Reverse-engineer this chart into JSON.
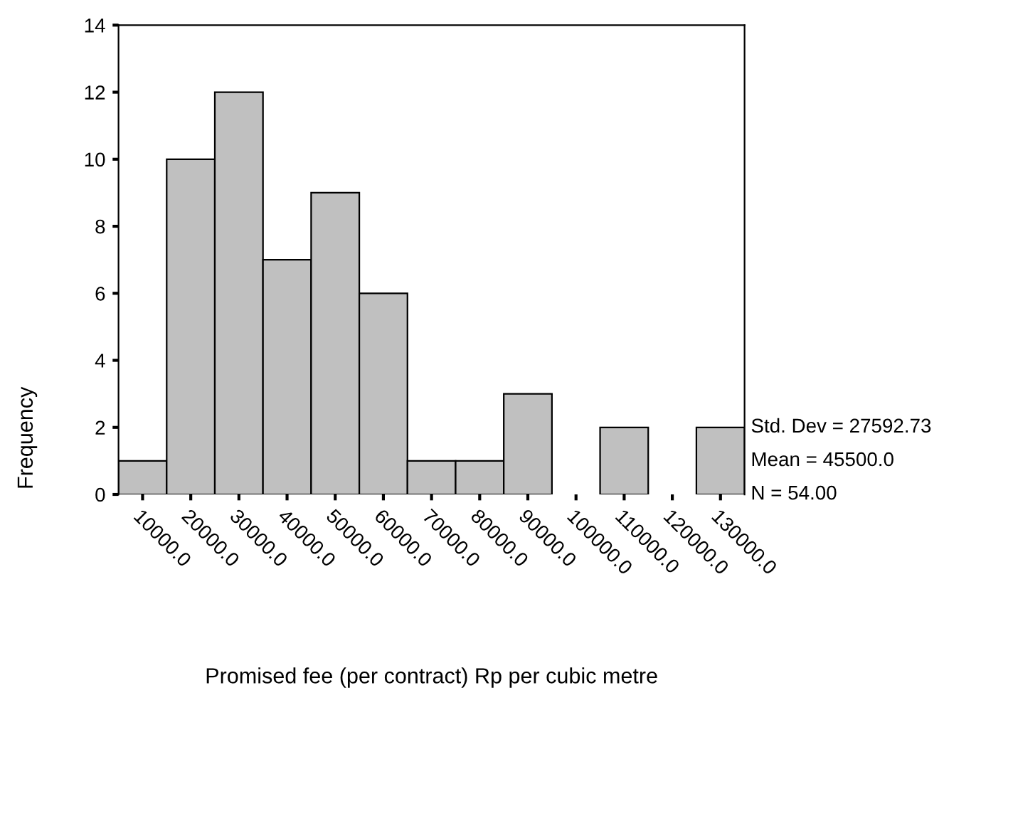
{
  "chart_data": {
    "type": "histogram",
    "xlabel": "Promised fee (per contract) Rp per cubic metre",
    "ylabel": "Frequency",
    "bins": [
      5000,
      15000,
      25000,
      35000,
      45000,
      55000,
      65000,
      75000,
      85000,
      95000,
      105000,
      115000,
      125000,
      135000
    ],
    "values": [
      1,
      10,
      12,
      7,
      9,
      6,
      1,
      1,
      3,
      0,
      2,
      0,
      2
    ],
    "color": "#c0c0c0",
    "xlim": [
      5000,
      135000
    ],
    "xticks": [
      {
        "value": 10000,
        "label": "10000.0"
      },
      {
        "value": 20000,
        "label": "20000.0"
      },
      {
        "value": 30000,
        "label": "30000.0"
      },
      {
        "value": 40000,
        "label": "40000.0"
      },
      {
        "value": 50000,
        "label": "50000.0"
      },
      {
        "value": 60000,
        "label": "60000.0"
      },
      {
        "value": 70000,
        "label": "70000.0"
      },
      {
        "value": 80000,
        "label": "80000.0"
      },
      {
        "value": 90000,
        "label": "90000.0"
      },
      {
        "value": 100000,
        "label": "100000.0"
      },
      {
        "value": 110000,
        "label": "110000.0"
      },
      {
        "value": 120000,
        "label": "120000.0"
      },
      {
        "value": 130000,
        "label": "130000.0"
      }
    ],
    "ylim": [
      0,
      14
    ],
    "yticks": [
      0,
      2,
      4,
      6,
      8,
      10,
      12,
      14
    ],
    "annotations": [
      "Std. Dev = 27592.73",
      "Mean = 45500.0",
      "N = 54.00"
    ],
    "grid": false
  }
}
